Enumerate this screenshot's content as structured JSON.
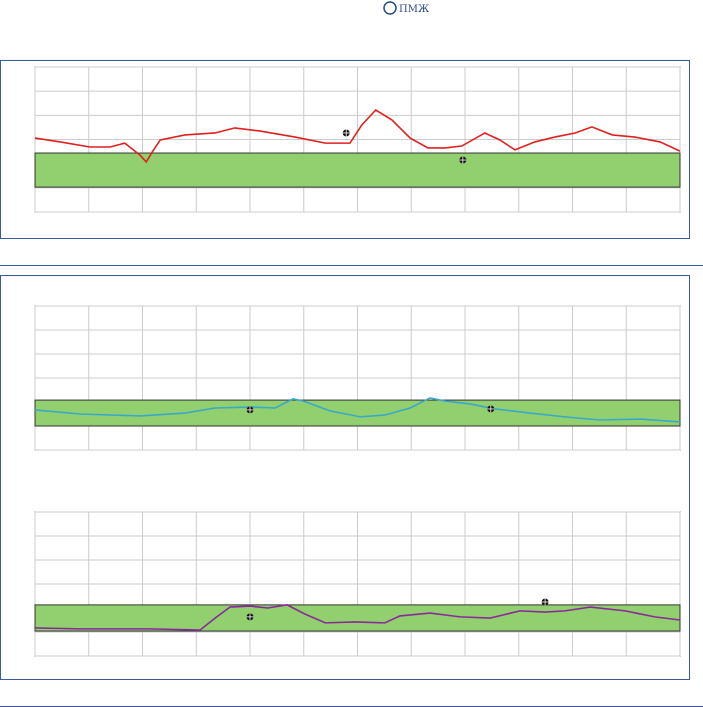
{
  "header": {
    "logo_text": "ПМЖ"
  },
  "chart_data": [
    {
      "type": "line",
      "xlim": [
        0,
        12
      ],
      "xticks": [
        0,
        1,
        2,
        3,
        4,
        5,
        6,
        7,
        8,
        9,
        10,
        11,
        12
      ],
      "ylim": [
        0,
        6
      ],
      "yticks": [
        0,
        1,
        2,
        3,
        4,
        5,
        6
      ],
      "grid": true,
      "band": [
        1.03,
        2.44
      ],
      "band_color": "#92cf6f",
      "series": [
        {
          "color": "#e0201e",
          "x": [
            0,
            0.47,
            1.02,
            1.4,
            1.67,
            1.95,
            2.07,
            2.18,
            2.33,
            2.79,
            3.35,
            3.72,
            4.19,
            4.84,
            5.4,
            5.86,
            6.08,
            6.34,
            6.64,
            6.98,
            7.31,
            7.63,
            7.94,
            8.37,
            8.65,
            8.93,
            9.3,
            9.67,
            10.05,
            10.36,
            10.74,
            11.16,
            11.63,
            12
          ],
          "values": [
            3.06,
            2.9,
            2.69,
            2.69,
            2.85,
            2.36,
            2.07,
            2.48,
            2.98,
            3.19,
            3.27,
            3.48,
            3.35,
            3.1,
            2.85,
            2.85,
            3.6,
            4.22,
            3.81,
            3.06,
            2.65,
            2.65,
            2.73,
            3.27,
            2.98,
            2.57,
            2.9,
            3.1,
            3.27,
            3.52,
            3.19,
            3.1,
            2.9,
            2.52
          ]
        }
      ],
      "markers": {
        "x": [
          5.79,
          7.96
        ],
        "y": [
          3.27,
          2.15
        ]
      }
    },
    {
      "type": "line",
      "xlim": [
        0,
        12
      ],
      "xticks": [
        0,
        1,
        2,
        3,
        4,
        5,
        6,
        7,
        8,
        9,
        10,
        11,
        12
      ],
      "ylim": [
        0,
        6
      ],
      "yticks": [
        0,
        1,
        2,
        3,
        4,
        5,
        6
      ],
      "grid": true,
      "band": [
        1.0,
        2.08
      ],
      "band_color": "#92cf6f",
      "series": [
        {
          "color": "#3aa8c8",
          "x": [
            0,
            0.84,
            1.95,
            2.79,
            3.35,
            4.0,
            4.47,
            4.8,
            4.99,
            5.49,
            6.05,
            6.51,
            6.98,
            7.35,
            7.63,
            8.09,
            8.56,
            9.21,
            9.86,
            10.51,
            11.26,
            12
          ],
          "values": [
            1.67,
            1.5,
            1.42,
            1.54,
            1.75,
            1.79,
            1.75,
            2.13,
            2.04,
            1.63,
            1.38,
            1.46,
            1.75,
            2.17,
            2.04,
            1.92,
            1.71,
            1.54,
            1.38,
            1.25,
            1.29,
            1.17
          ]
        }
      ],
      "markers": {
        "x": [
          4.0,
          8.48
        ],
        "y": [
          1.67,
          1.71
        ]
      }
    },
    {
      "type": "line",
      "xlim": [
        0,
        12
      ],
      "xticks": [
        0,
        1,
        2,
        3,
        4,
        5,
        6,
        7,
        8,
        9,
        10,
        11,
        12
      ],
      "ylim": [
        0,
        6
      ],
      "yticks": [
        0,
        1,
        2,
        3,
        4,
        5,
        6
      ],
      "grid": true,
      "band": [
        1.04,
        2.13
      ],
      "band_color": "#92cf6f",
      "series": [
        {
          "color": "#8a2a9a",
          "x": [
            0,
            0.84,
            2.14,
            3.07,
            3.35,
            3.63,
            4.0,
            4.33,
            4.69,
            5.02,
            5.4,
            5.95,
            6.51,
            6.79,
            7.35,
            7.91,
            8.47,
            9.02,
            9.49,
            9.86,
            10.33,
            10.98,
            11.53,
            12
          ],
          "values": [
            1.17,
            1.13,
            1.13,
            1.08,
            1.58,
            2.04,
            2.08,
            2.0,
            2.13,
            1.75,
            1.38,
            1.42,
            1.38,
            1.67,
            1.79,
            1.63,
            1.58,
            1.88,
            1.83,
            1.88,
            2.04,
            1.88,
            1.63,
            1.5
          ]
        }
      ],
      "markers": {
        "x": [
          4.0,
          9.49
        ],
        "y": [
          1.63,
          2.25
        ]
      }
    }
  ]
}
